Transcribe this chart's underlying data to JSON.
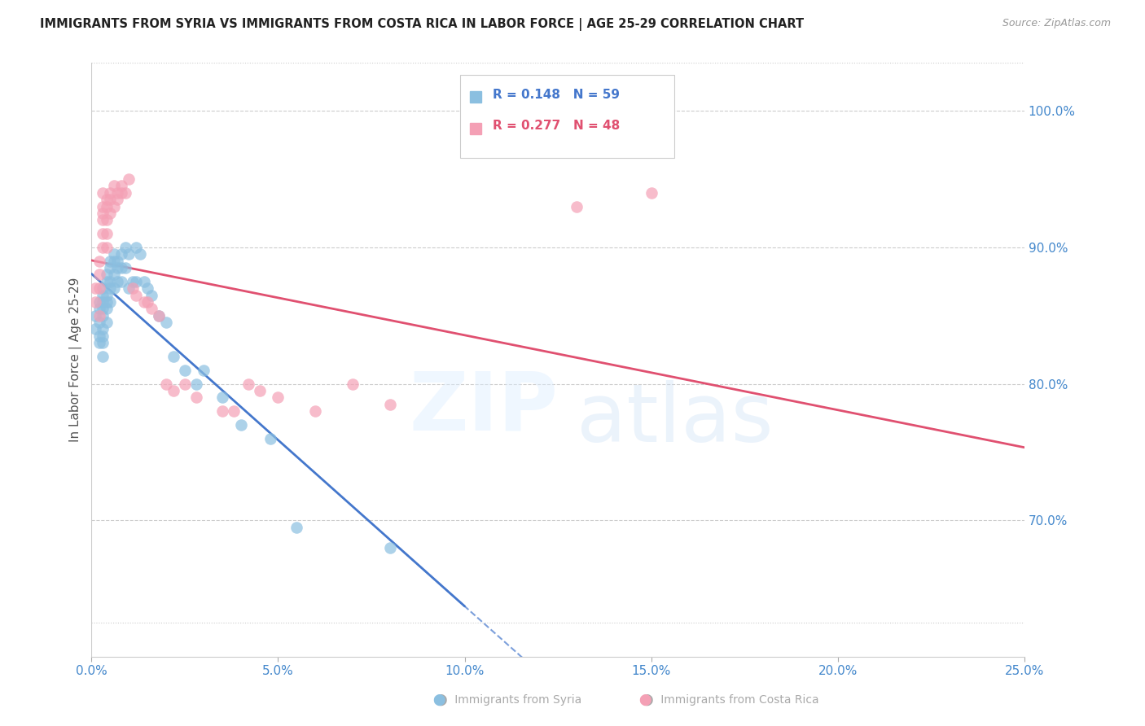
{
  "title": "IMMIGRANTS FROM SYRIA VS IMMIGRANTS FROM COSTA RICA IN LABOR FORCE | AGE 25-29 CORRELATION CHART",
  "source": "Source: ZipAtlas.com",
  "ylabel": "In Labor Force | Age 25-29",
  "yaxis_values": [
    1.0,
    0.9,
    0.8,
    0.7
  ],
  "xlim": [
    0.0,
    0.25
  ],
  "ylim": [
    0.6,
    1.035
  ],
  "legend_r1": "R = 0.148",
  "legend_n1": "N = 59",
  "legend_r2": "R = 0.277",
  "legend_n2": "N = 48",
  "color_syria": "#8bbfe0",
  "color_costa_rica": "#f4a0b5",
  "color_line_syria": "#4477cc",
  "color_line_costa_rica": "#e05070",
  "color_axis_labels": "#4488cc",
  "syria_x": [
    0.001,
    0.001,
    0.002,
    0.002,
    0.002,
    0.002,
    0.002,
    0.003,
    0.003,
    0.003,
    0.003,
    0.003,
    0.003,
    0.003,
    0.003,
    0.003,
    0.004,
    0.004,
    0.004,
    0.004,
    0.004,
    0.004,
    0.005,
    0.005,
    0.005,
    0.005,
    0.005,
    0.006,
    0.006,
    0.006,
    0.006,
    0.007,
    0.007,
    0.007,
    0.008,
    0.008,
    0.008,
    0.009,
    0.009,
    0.01,
    0.01,
    0.011,
    0.012,
    0.012,
    0.013,
    0.014,
    0.015,
    0.016,
    0.018,
    0.02,
    0.022,
    0.025,
    0.028,
    0.03,
    0.035,
    0.04,
    0.048,
    0.055,
    0.08
  ],
  "syria_y": [
    0.84,
    0.85,
    0.86,
    0.855,
    0.845,
    0.835,
    0.83,
    0.87,
    0.865,
    0.86,
    0.855,
    0.85,
    0.84,
    0.835,
    0.83,
    0.82,
    0.88,
    0.875,
    0.865,
    0.86,
    0.855,
    0.845,
    0.89,
    0.885,
    0.875,
    0.87,
    0.86,
    0.895,
    0.89,
    0.88,
    0.87,
    0.89,
    0.885,
    0.875,
    0.895,
    0.885,
    0.875,
    0.9,
    0.885,
    0.895,
    0.87,
    0.875,
    0.9,
    0.875,
    0.895,
    0.875,
    0.87,
    0.865,
    0.85,
    0.845,
    0.82,
    0.81,
    0.8,
    0.81,
    0.79,
    0.77,
    0.76,
    0.695,
    0.68
  ],
  "costa_rica_x": [
    0.001,
    0.001,
    0.002,
    0.002,
    0.002,
    0.002,
    0.003,
    0.003,
    0.003,
    0.003,
    0.003,
    0.003,
    0.004,
    0.004,
    0.004,
    0.004,
    0.004,
    0.005,
    0.005,
    0.005,
    0.006,
    0.006,
    0.007,
    0.007,
    0.008,
    0.008,
    0.009,
    0.01,
    0.011,
    0.012,
    0.014,
    0.015,
    0.016,
    0.018,
    0.02,
    0.022,
    0.025,
    0.028,
    0.035,
    0.038,
    0.042,
    0.045,
    0.05,
    0.06,
    0.07,
    0.08,
    0.13,
    0.15
  ],
  "costa_rica_y": [
    0.87,
    0.86,
    0.89,
    0.88,
    0.87,
    0.85,
    0.94,
    0.93,
    0.925,
    0.92,
    0.91,
    0.9,
    0.935,
    0.93,
    0.92,
    0.91,
    0.9,
    0.94,
    0.935,
    0.925,
    0.945,
    0.93,
    0.94,
    0.935,
    0.945,
    0.94,
    0.94,
    0.95,
    0.87,
    0.865,
    0.86,
    0.86,
    0.855,
    0.85,
    0.8,
    0.795,
    0.8,
    0.79,
    0.78,
    0.78,
    0.8,
    0.795,
    0.79,
    0.78,
    0.8,
    0.785,
    0.93,
    0.94
  ]
}
